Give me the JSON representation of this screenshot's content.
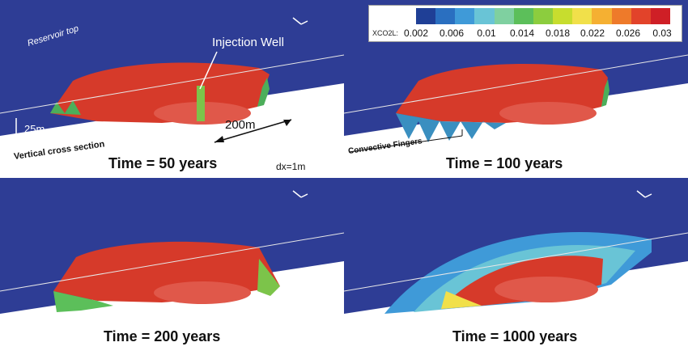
{
  "panels": [
    {
      "caption": "Time = 50 years"
    },
    {
      "caption": "Time = 100 years"
    },
    {
      "caption": "Time = 200 years"
    },
    {
      "caption": "Time = 1000 years"
    }
  ],
  "annotations": {
    "injection_well": "Injection Well",
    "reservoir_top": "Reservoir top",
    "thickness": "25m",
    "length": "200m",
    "cross_section": "Vertical cross section",
    "grid": "dx=1m",
    "fingers": "Convective Fingers"
  },
  "legend": {
    "variable": "XCO2L:",
    "ticks": [
      "0.002",
      "0.006",
      "0.01",
      "0.014",
      "0.018",
      "0.022",
      "0.026",
      "0.03"
    ],
    "colors": [
      "#1f3f96",
      "#2a6fc0",
      "#3f9ad8",
      "#69c4d6",
      "#7fd0a0",
      "#5cbf5a",
      "#8ccd3e",
      "#c7dd2e",
      "#f1e04a",
      "#f5b032",
      "#ee7a2a",
      "#e2432a",
      "#cf1f26"
    ]
  },
  "colors": {
    "background": "#2e3d95",
    "rock": "#ffffff",
    "plume": "#d63a2a",
    "plume_core": "#e0584a"
  }
}
